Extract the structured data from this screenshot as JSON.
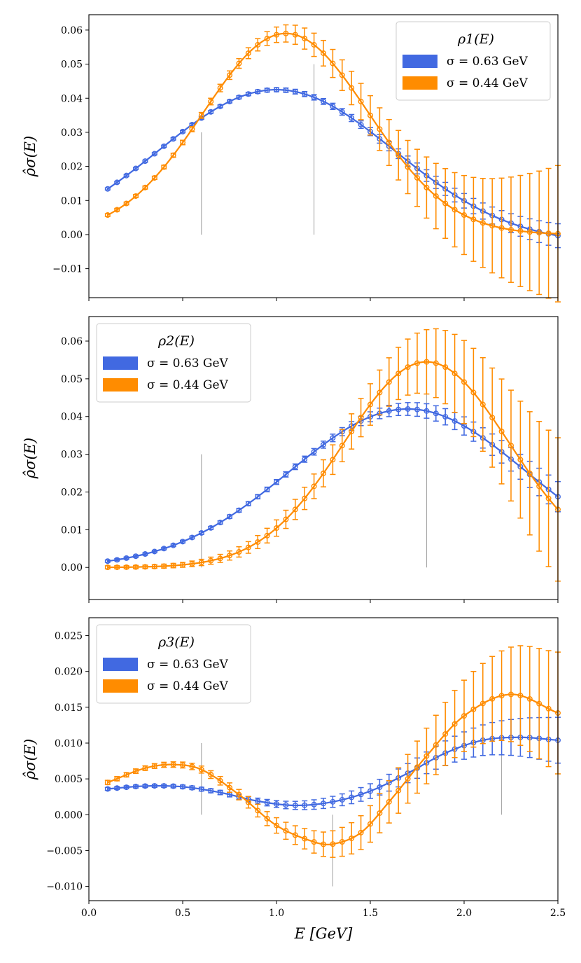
{
  "figure": {
    "xlabel": "E [GeV]",
    "xticks": [
      "0.0",
      "0.5",
      "1.0",
      "1.5",
      "2.0",
      "2.5"
    ],
    "xlim": [
      0.0,
      2.5
    ]
  },
  "chart_data": [
    {
      "type": "line",
      "title": "",
      "xlabel": "",
      "ylabel": "ρ̂σ(E)",
      "ylim": [
        -0.0185,
        0.0645
      ],
      "yticks": [
        -0.01,
        0.0,
        0.01,
        0.02,
        0.03,
        0.04,
        0.05,
        0.06
      ],
      "ytick_labels": [
        "−0.01",
        "0.00",
        "0.01",
        "0.02",
        "0.03",
        "0.04",
        "0.05",
        "0.06"
      ],
      "legend": {
        "title": "ρ1(E)",
        "placement": "top-right"
      },
      "markers": [
        {
          "x": 0.6,
          "height": 0.03
        },
        {
          "x": 1.2,
          "height": 0.05
        }
      ],
      "series": [
        {
          "name": "σ = 0.63 GeV",
          "color": "#4169e1",
          "curve": {
            "amp": 0.0455,
            "mu": 1.0,
            "sd": 0.63,
            "offset": -0.003
          },
          "points": {
            "x_start": 0.1,
            "x_end": 2.5,
            "n": 49,
            "err_min": 0.0003,
            "err_max": 0.0035
          }
        },
        {
          "name": "σ = 0.44 GeV",
          "color": "#ff8c00",
          "curve": {
            "amp": 0.059,
            "mu": 1.05,
            "sd": 0.44,
            "offset": 0.0
          },
          "points": {
            "x_start": 0.1,
            "x_end": 2.5,
            "n": 49,
            "err_min": 0.0004,
            "err_max": 0.02
          }
        }
      ]
    },
    {
      "type": "line",
      "title": "",
      "xlabel": "",
      "ylabel": "ρ̂σ(E)",
      "ylim": [
        -0.0085,
        0.0665
      ],
      "yticks": [
        0.0,
        0.01,
        0.02,
        0.03,
        0.04,
        0.05,
        0.06
      ],
      "ytick_labels": [
        "0.00",
        "0.01",
        "0.02",
        "0.03",
        "0.04",
        "0.05",
        "0.06"
      ],
      "legend": {
        "title": "ρ2(E)",
        "placement": "top-left"
      },
      "markers": [
        {
          "x": 0.6,
          "height": 0.03
        },
        {
          "x": 1.8,
          "height": 0.05
        }
      ],
      "series": [
        {
          "name": "σ = 0.63 GeV",
          "color": "#4169e1",
          "curve": {
            "amp": 0.042,
            "mu": 1.7,
            "sd": 0.63,
            "offset": 0.0
          },
          "points": {
            "x_start": 0.1,
            "x_end": 2.5,
            "n": 49,
            "err_min": 0.0003,
            "err_max": 0.004
          }
        },
        {
          "name": "σ = 0.44 GeV",
          "color": "#ff8c00",
          "curve": {
            "amp": 0.0545,
            "mu": 1.8,
            "sd": 0.44,
            "offset": 0.0
          },
          "points": {
            "x_start": 0.1,
            "x_end": 2.5,
            "n": 49,
            "err_min": 0.0004,
            "err_max": 0.019
          }
        }
      ]
    },
    {
      "type": "line",
      "title": "",
      "xlabel": "E [GeV]",
      "ylabel": "ρ̂σ(E)",
      "ylim": [
        -0.012,
        0.0275
      ],
      "yticks": [
        -0.01,
        -0.005,
        0.0,
        0.005,
        0.01,
        0.015,
        0.02,
        0.025
      ],
      "ytick_labels": [
        "−0.010",
        "−0.005",
        "0.000",
        "0.005",
        "0.010",
        "0.015",
        "0.020",
        "0.025"
      ],
      "legend": {
        "title": "ρ3(E)",
        "placement": "top-left"
      },
      "markers": [
        {
          "x": 0.6,
          "height": 0.01
        },
        {
          "x": 1.3,
          "height": -0.01
        },
        {
          "x": 2.2,
          "height": 0.02
        }
      ],
      "series": [
        {
          "name": "σ = 0.63 GeV",
          "color": "#4169e1",
          "curve": {
            "knots_x": [
              0.1,
              0.3,
              0.5,
              0.7,
              0.9,
              1.1,
              1.3,
              1.5,
              1.7,
              1.9,
              2.1,
              2.3,
              2.5
            ],
            "knots_y": [
              0.0036,
              0.004,
              0.0039,
              0.0031,
              0.0019,
              0.0013,
              0.0018,
              0.0033,
              0.0058,
              0.0086,
              0.0104,
              0.0108,
              0.0104
            ]
          },
          "points": {
            "x_start": 0.1,
            "x_end": 2.5,
            "n": 49,
            "err_min": 0.0002,
            "err_max": 0.0032
          }
        },
        {
          "name": "σ = 0.44 GeV",
          "color": "#ff8c00",
          "curve": {
            "knots_x": [
              0.1,
              0.3,
              0.45,
              0.6,
              0.8,
              1.0,
              1.2,
              1.3,
              1.45,
              1.6,
              1.8,
              2.0,
              2.25,
              2.5
            ],
            "knots_y": [
              0.0045,
              0.0065,
              0.007,
              0.0063,
              0.0028,
              -0.0015,
              -0.0038,
              -0.0041,
              -0.0025,
              0.0018,
              0.0082,
              0.0138,
              0.0168,
              0.0142
            ]
          },
          "points": {
            "x_start": 0.1,
            "x_end": 2.5,
            "n": 49,
            "err_min": 0.0003,
            "err_max": 0.0085
          }
        }
      ]
    }
  ]
}
